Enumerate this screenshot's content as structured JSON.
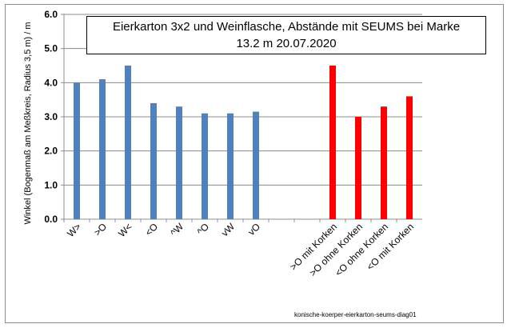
{
  "chart_data": {
    "type": "bar",
    "title_line1": "Eierkarton 3x2 und Weinflasche, Abstände mit SEUMS bei Marke",
    "title_line2": "13.2 m  20.07.2020",
    "xlabel": "",
    "ylabel": "Winkel (Bogenmaß am Meßkreis, Radius 3,5 m) / m",
    "ylim": [
      0,
      6
    ],
    "yticks": [
      "0.0",
      "1.0",
      "2.0",
      "3.0",
      "4.0",
      "5.0",
      "6.0"
    ],
    "grid": true,
    "legend": "none",
    "categories": [
      "W>",
      ">O",
      "W<",
      "<O",
      "^W",
      "^O",
      "vW",
      "vO",
      "",
      "",
      ">O mit Korken",
      ">O ohne Korken",
      "<O ohne Korken",
      "<O mit Korken"
    ],
    "values": [
      4.0,
      4.1,
      4.5,
      3.4,
      3.3,
      3.1,
      3.1,
      3.15,
      null,
      null,
      4.5,
      3.0,
      3.3,
      3.6
    ],
    "colors": [
      "#4f81bd",
      "#4f81bd",
      "#4f81bd",
      "#4f81bd",
      "#4f81bd",
      "#4f81bd",
      "#4f81bd",
      "#4f81bd",
      "#4f81bd",
      "#4f81bd",
      "#ff0000",
      "#ff0000",
      "#ff0000",
      "#ff0000"
    ],
    "footnote": "konische-koerper-eierkarton-seums-diag01"
  }
}
